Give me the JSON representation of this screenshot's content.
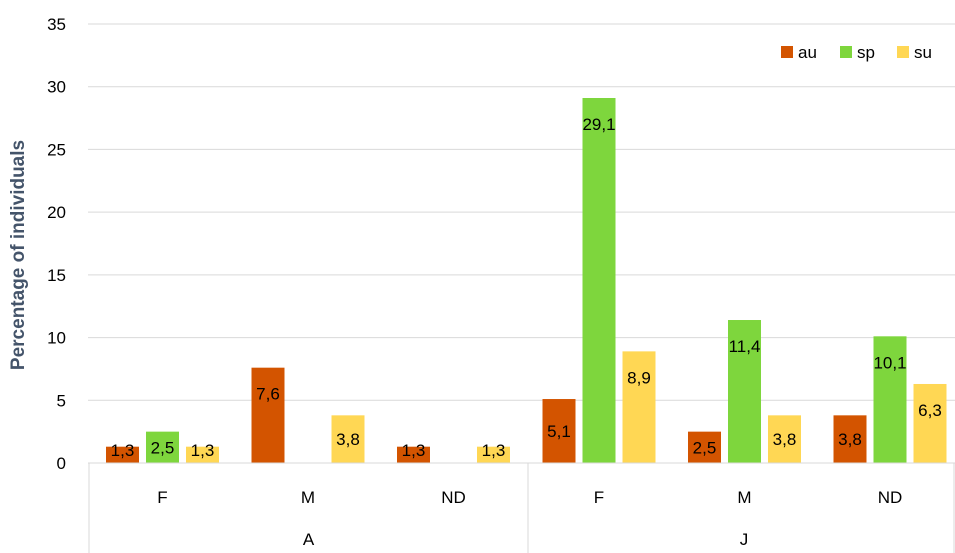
{
  "chart_data": {
    "type": "bar",
    "title": "",
    "ylabel": "Percentage of individuals",
    "xlabel": "",
    "ylim": [
      0,
      35
    ],
    "yticks": [
      0,
      5,
      10,
      15,
      20,
      25,
      30,
      35
    ],
    "grid": true,
    "legend_position": "top-right",
    "groups": [
      {
        "label": "A",
        "categories": [
          "F",
          "M",
          "ND"
        ]
      },
      {
        "label": "J",
        "categories": [
          "F",
          "M",
          "ND"
        ]
      }
    ],
    "categories": [
      "F",
      "M",
      "ND",
      "F",
      "M",
      "ND"
    ],
    "series": [
      {
        "name": "au",
        "color": "#D35400",
        "values": [
          1.3,
          7.6,
          1.3,
          5.1,
          2.5,
          3.8
        ],
        "labels": [
          "1,3",
          "7,6",
          "1,3",
          "5,1",
          "2,5",
          "3,8"
        ]
      },
      {
        "name": "sp",
        "color": "#7ED63D",
        "values": [
          2.5,
          0,
          0,
          29.1,
          11.4,
          10.1
        ],
        "labels": [
          "2,5",
          "",
          "",
          "29,1",
          "11,4",
          "10,1"
        ]
      },
      {
        "name": "su",
        "color": "#FFD754",
        "values": [
          1.3,
          3.8,
          1.3,
          8.9,
          3.8,
          6.3
        ],
        "labels": [
          "1,3",
          "3,8",
          "1,3",
          "8,9",
          "3,8",
          "6,3"
        ]
      }
    ]
  }
}
